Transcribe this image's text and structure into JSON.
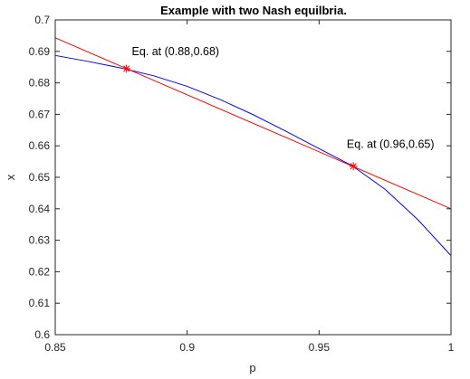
{
  "chart_data": {
    "type": "line",
    "title": "Example with two Nash equilbria.",
    "xlabel": "p",
    "ylabel": "x",
    "xlim": [
      0.85,
      1.0
    ],
    "ylim": [
      0.6,
      0.7
    ],
    "xticks": [
      0.85,
      0.9,
      0.95,
      1.0
    ],
    "xtick_labels": [
      "0.85",
      "0.9",
      "0.95",
      "1"
    ],
    "yticks": [
      0.6,
      0.61,
      0.62,
      0.63,
      0.64,
      0.65,
      0.66,
      0.67,
      0.68,
      0.69,
      0.7
    ],
    "ytick_labels": [
      "0.6",
      "0.61",
      "0.62",
      "0.63",
      "0.64",
      "0.65",
      "0.66",
      "0.67",
      "0.68",
      "0.69",
      "0.7"
    ],
    "grid": false,
    "series": [
      {
        "color": "#0000ff",
        "x": [
          0.85,
          0.8625,
          0.875,
          0.8875,
          0.9,
          0.9125,
          0.925,
          0.9375,
          0.95,
          0.9625,
          0.975,
          0.9875,
          1.0
        ],
        "y": [
          0.6887,
          0.6868,
          0.6847,
          0.6822,
          0.6789,
          0.6747,
          0.6699,
          0.6646,
          0.6591,
          0.6537,
          0.6462,
          0.6365,
          0.6251
        ]
      },
      {
        "color": "#ff0000",
        "x": [
          0.85,
          1.0
        ],
        "y": [
          0.6943,
          0.64
        ]
      }
    ],
    "markers": [
      {
        "x": 0.877,
        "y": 0.6845,
        "color": "#ff0000",
        "symbol": "asterisk"
      },
      {
        "x": 0.963,
        "y": 0.6535,
        "color": "#ff0000",
        "symbol": "asterisk"
      }
    ],
    "annotations": [
      {
        "text": "Eq. at (0.88,0.68)",
        "x": 0.879,
        "y": 0.6888
      },
      {
        "text": "Eq. at (0.96,0.65)",
        "x": 0.9605,
        "y": 0.6594
      }
    ]
  }
}
